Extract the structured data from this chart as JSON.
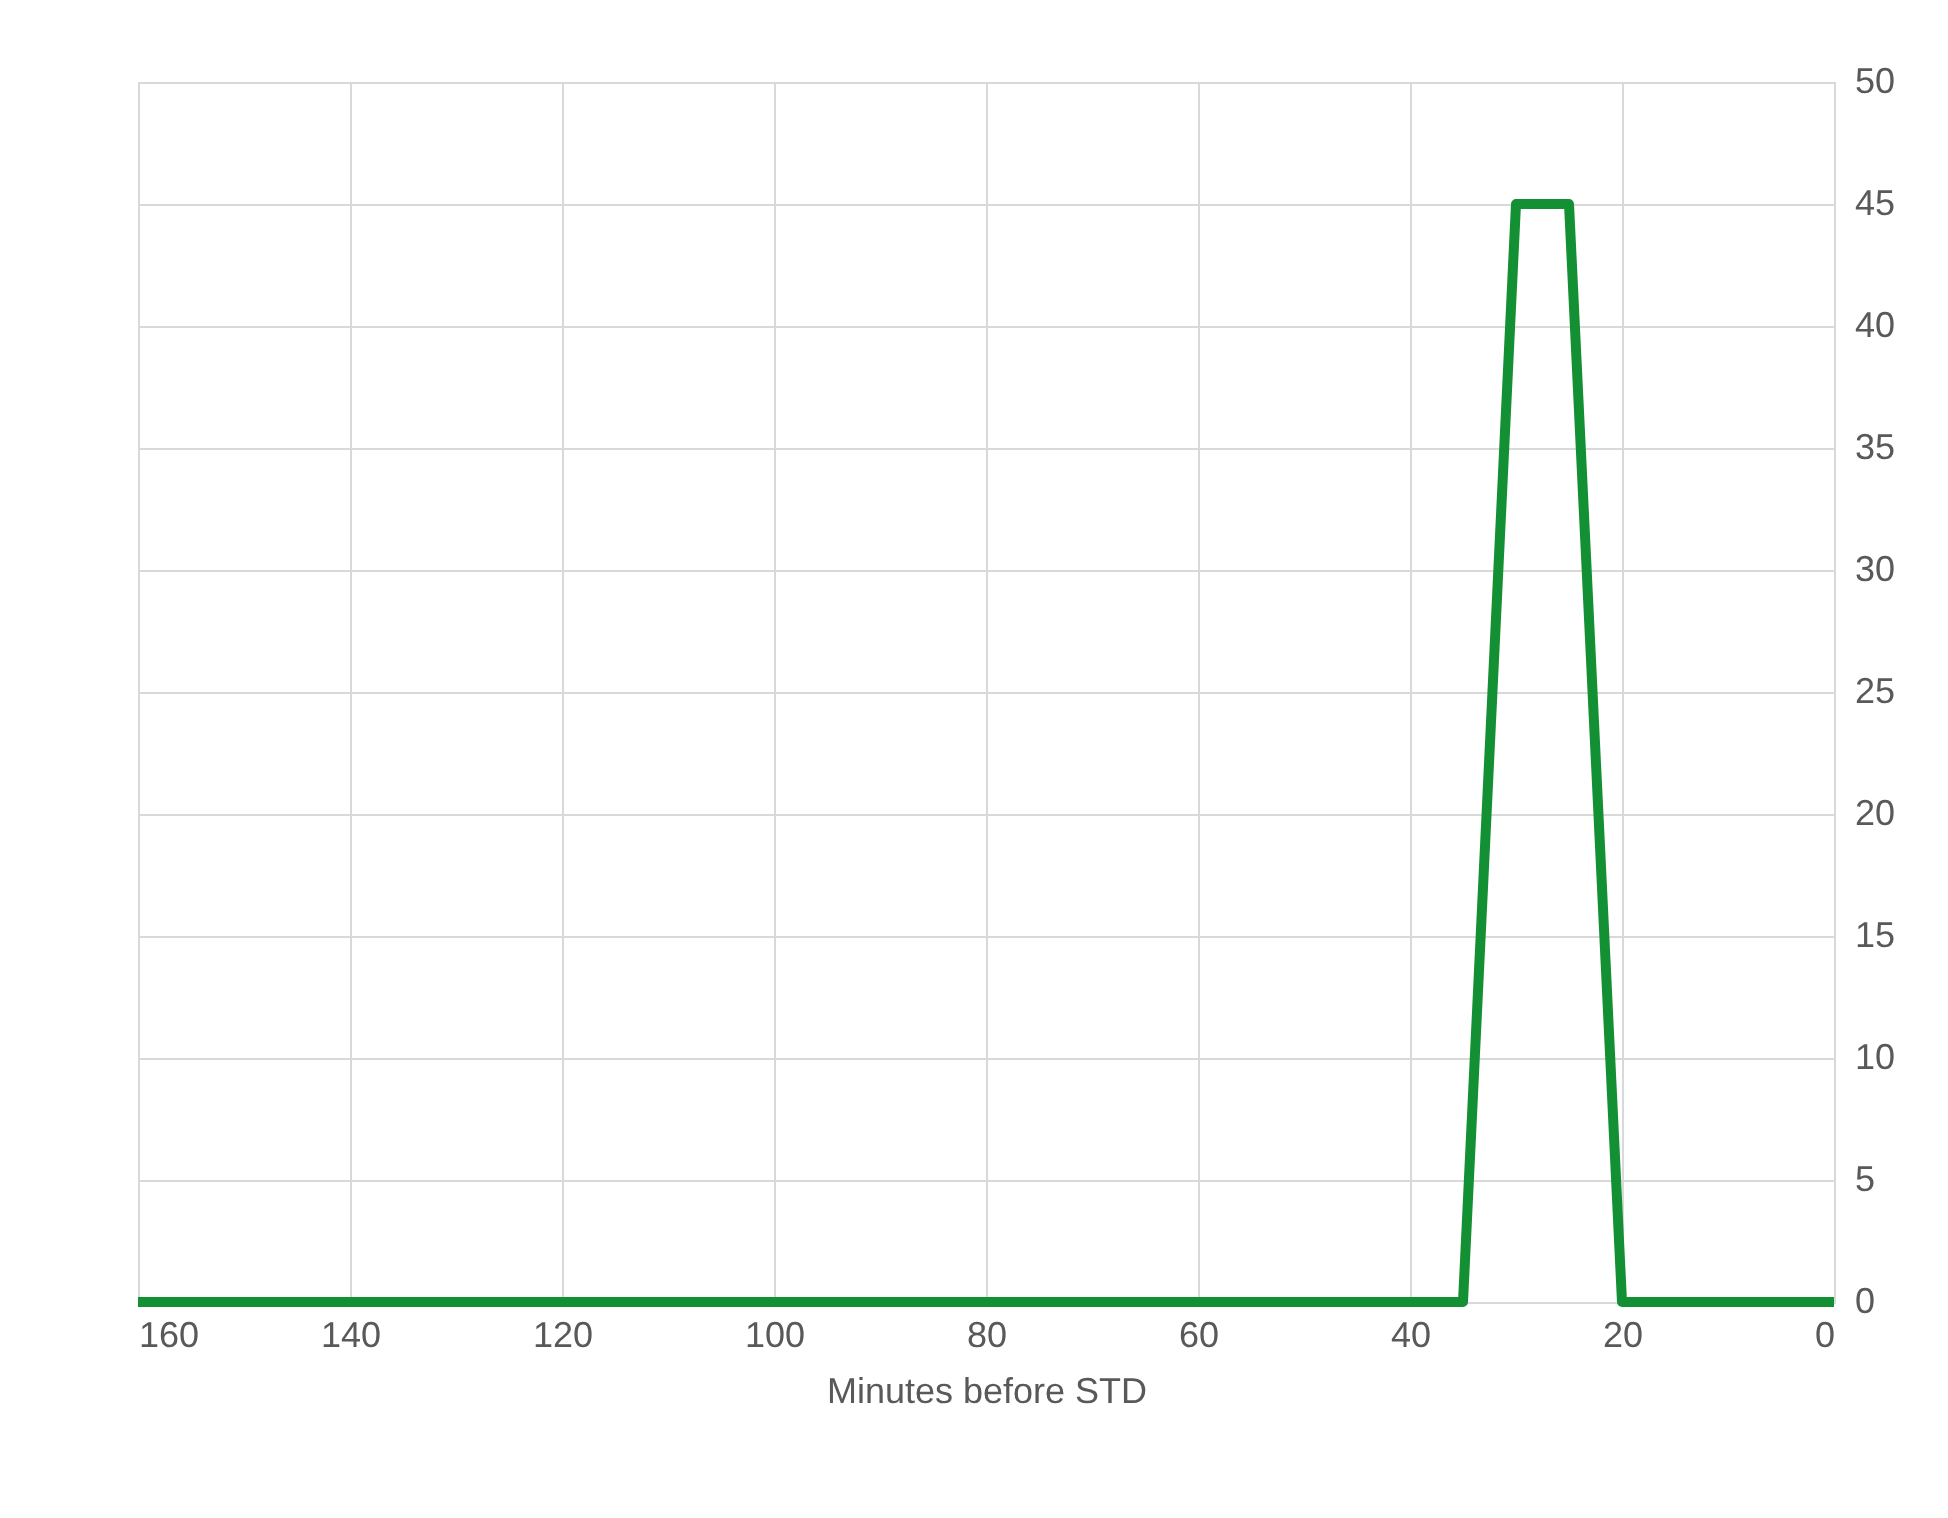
{
  "chart_data": {
    "type": "line",
    "xlabel": "Minutes before STD",
    "x": [
      160,
      35,
      30,
      25,
      20,
      0
    ],
    "series": [
      {
        "color": "#149034",
        "values": [
          0,
          0,
          45,
          45,
          0,
          0
        ]
      }
    ],
    "xlim": [
      160,
      0
    ],
    "xticks": [
      160,
      140,
      120,
      100,
      80,
      60,
      40,
      20,
      0
    ],
    "ylim": [
      0,
      50
    ],
    "yticks": [
      0,
      5,
      10,
      15,
      20,
      25,
      30,
      35,
      40,
      45,
      50
    ],
    "grid": true,
    "marker": "none",
    "line_style": "solid"
  }
}
